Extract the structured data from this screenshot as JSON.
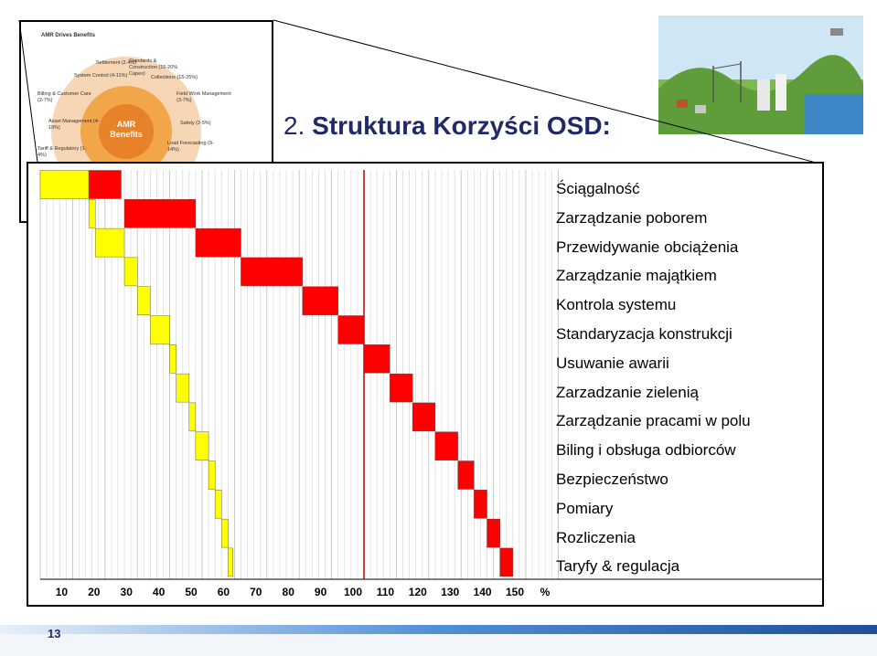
{
  "slide": {
    "title_number": "2.",
    "title_text": "Struktura Korzyści OSD:",
    "page_number": "13"
  },
  "inset": {
    "title": "AMR Drives Benefits",
    "center_label": "AMR Benefits",
    "segments": [
      {
        "label": "Settlement (2.4%)"
      },
      {
        "label": "Standards & Construction (15-20% Capex)"
      },
      {
        "label": "Collections (15-25%)"
      },
      {
        "label": "Field Work Management (3-7%)"
      },
      {
        "label": "Safety (2-5%)"
      },
      {
        "label": "Load Forecasting (9-14%)"
      },
      {
        "label": "Tariff & Regulatory (1-4%)"
      },
      {
        "label": "Asset Management (4-19%)"
      },
      {
        "label": "Billing & Customer Care (2-7%)"
      },
      {
        "label": "System Control (4-11%)"
      }
    ]
  },
  "colors": {
    "title": "#1f2a66",
    "positive": "#ff0000",
    "negative": "#ffff00",
    "grid": "#c8c8c8",
    "marker": "#c00000",
    "footer_blue": "#1e63b5"
  },
  "chart_data": {
    "type": "waterfall",
    "x_unit": "%",
    "x_ticks": [
      10,
      20,
      30,
      40,
      50,
      60,
      70,
      80,
      90,
      100,
      110,
      120,
      130,
      140,
      150
    ],
    "xlim": [
      0,
      160
    ],
    "reference_line": 100,
    "categories": [
      "Ściągalność",
      "Zarządzanie poborem",
      "Przewidywanie obciążenia",
      "Zarządzanie majątkiem",
      "Kontrola systemu",
      "Standaryzacja konstrukcji",
      "Usuwanie awarii",
      "Zarzadzanie zielenią",
      "Zarządzanie pracami w polu",
      "Biling i obsługa odbiorców",
      "Bezpieczeństwo",
      "Pomiary",
      "Rozliczenia",
      "Taryfy & regulacja"
    ],
    "negative_segments": [
      [
        0,
        15
      ],
      [
        15,
        17
      ],
      [
        17,
        26
      ],
      [
        26,
        30
      ],
      [
        30,
        34
      ],
      [
        34,
        40
      ],
      [
        40,
        42
      ],
      [
        42,
        46
      ],
      [
        46,
        48
      ],
      [
        48,
        52
      ],
      [
        52,
        54
      ],
      [
        54,
        56
      ],
      [
        56,
        58
      ],
      [
        58,
        59.5
      ]
    ],
    "positive_segments": [
      [
        15,
        25
      ],
      [
        26,
        48
      ],
      [
        48,
        62
      ],
      [
        62,
        81
      ],
      [
        81,
        92
      ],
      [
        92,
        100
      ],
      [
        100,
        108
      ],
      [
        108,
        115
      ],
      [
        115,
        122
      ],
      [
        122,
        129
      ],
      [
        129,
        134
      ],
      [
        134,
        138
      ],
      [
        138,
        142
      ],
      [
        142,
        146
      ]
    ]
  }
}
